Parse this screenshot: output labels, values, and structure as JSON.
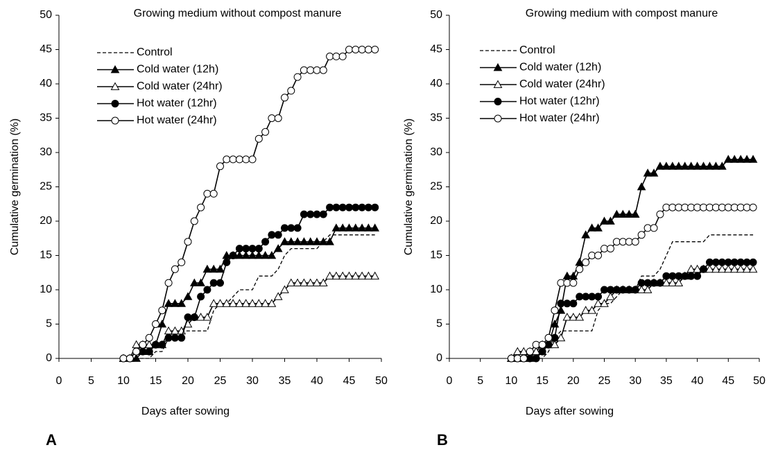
{
  "chart_data": [
    {
      "type": "line",
      "panel_label": "A",
      "title": "Growing medium without compost manure",
      "x_label": "Days after sowing",
      "y_label": "Cumulative germination (%)",
      "xlim": [
        0,
        50
      ],
      "ylim": [
        0,
        50
      ],
      "xticks": [
        0,
        5,
        10,
        15,
        20,
        25,
        30,
        35,
        40,
        45,
        50
      ],
      "yticks": [
        0,
        5,
        10,
        15,
        20,
        25,
        30,
        35,
        40,
        45,
        50
      ],
      "legend": "upper left",
      "x": [
        10,
        11,
        12,
        13,
        14,
        15,
        16,
        17,
        18,
        19,
        20,
        21,
        22,
        23,
        24,
        25,
        26,
        27,
        28,
        29,
        30,
        31,
        32,
        33,
        34,
        35,
        36,
        37,
        38,
        39,
        40,
        41,
        42,
        43,
        44,
        45,
        46,
        47,
        48,
        49
      ],
      "series": [
        {
          "name": "Control",
          "color": "#000000",
          "marker": "none",
          "dashed": true,
          "values": [
            0,
            0,
            0,
            0,
            0,
            1,
            1,
            3,
            4,
            4,
            4,
            4,
            4,
            4,
            7,
            8,
            8,
            9,
            10,
            10,
            10,
            12,
            12,
            12,
            13,
            15,
            16,
            16,
            16,
            16,
            16,
            17,
            18,
            18,
            18,
            18,
            18,
            18,
            18,
            18
          ]
        },
        {
          "name": "Cold water (12h)",
          "color": "#000000",
          "marker": "triangle-filled",
          "dashed": false,
          "values": [
            0,
            0,
            0,
            1,
            1,
            2,
            5,
            8,
            8,
            8,
            9,
            11,
            11,
            13,
            13,
            13,
            15,
            15,
            15,
            15,
            15,
            15,
            15,
            15,
            16,
            17,
            17,
            17,
            17,
            17,
            17,
            17,
            17,
            19,
            19,
            19,
            19,
            19,
            19,
            19
          ]
        },
        {
          "name": "Cold water (24hr)",
          "color": "#000000",
          "marker": "triangle-open",
          "dashed": false,
          "values": [
            0,
            0,
            2,
            2,
            2,
            2,
            2,
            4,
            4,
            4,
            5,
            6,
            6,
            6,
            8,
            8,
            8,
            8,
            8,
            8,
            8,
            8,
            8,
            8,
            9,
            10,
            11,
            11,
            11,
            11,
            11,
            11,
            12,
            12,
            12,
            12,
            12,
            12,
            12,
            12
          ]
        },
        {
          "name": "Hot water (12hr)",
          "color": "#000000",
          "marker": "circle-filled",
          "dashed": false,
          "values": [
            0,
            0,
            1,
            1,
            1,
            2,
            2,
            3,
            3,
            3,
            6,
            6,
            9,
            10,
            11,
            11,
            14,
            15,
            16,
            16,
            16,
            16,
            17,
            18,
            18,
            19,
            19,
            19,
            21,
            21,
            21,
            21,
            22,
            22,
            22,
            22,
            22,
            22,
            22,
            22
          ]
        },
        {
          "name": "Hot water (24hr)",
          "color": "#000000",
          "marker": "circle-open",
          "dashed": false,
          "values": [
            0,
            0,
            1,
            2,
            3,
            5,
            7,
            11,
            13,
            14,
            17,
            20,
            22,
            24,
            24,
            28,
            29,
            29,
            29,
            29,
            29,
            32,
            33,
            35,
            35,
            38,
            39,
            41,
            42,
            42,
            42,
            42,
            44,
            44,
            44,
            45,
            45,
            45,
            45,
            45
          ]
        }
      ]
    },
    {
      "type": "line",
      "panel_label": "B",
      "title": "Growing medium with compost manure",
      "x_label": "Days after sowing",
      "y_label": "Cumulative germination (%)",
      "xlim": [
        0,
        50
      ],
      "ylim": [
        0,
        50
      ],
      "xticks": [
        0,
        5,
        10,
        15,
        20,
        25,
        30,
        35,
        40,
        45,
        50
      ],
      "yticks": [
        0,
        5,
        10,
        15,
        20,
        25,
        30,
        35,
        40,
        45,
        50
      ],
      "legend": "upper left",
      "x": [
        10,
        11,
        12,
        13,
        14,
        15,
        16,
        17,
        18,
        19,
        20,
        21,
        22,
        23,
        24,
        25,
        26,
        27,
        28,
        29,
        30,
        31,
        32,
        33,
        34,
        35,
        36,
        37,
        38,
        39,
        40,
        41,
        42,
        43,
        44,
        45,
        46,
        47,
        48,
        49
      ],
      "series": [
        {
          "name": "Control",
          "color": "#000000",
          "marker": "none",
          "dashed": true,
          "values": [
            0,
            0,
            0,
            0,
            0,
            0,
            1,
            3,
            4,
            4,
            4,
            4,
            4,
            4,
            7,
            8,
            8,
            9,
            10,
            10,
            10,
            12,
            12,
            12,
            13,
            15,
            17,
            17,
            17,
            17,
            17,
            17,
            18,
            18,
            18,
            18,
            18,
            18,
            18,
            18
          ]
        },
        {
          "name": "Cold water (12h)",
          "color": "#000000",
          "marker": "triangle-filled",
          "dashed": false,
          "values": [
            0,
            0,
            0,
            0,
            1,
            2,
            2,
            5,
            7,
            12,
            12,
            14,
            18,
            19,
            19,
            20,
            20,
            21,
            21,
            21,
            21,
            25,
            27,
            27,
            28,
            28,
            28,
            28,
            28,
            28,
            28,
            28,
            28,
            28,
            28,
            29,
            29,
            29,
            29,
            29
          ]
        },
        {
          "name": "Cold water (24hr)",
          "color": "#000000",
          "marker": "triangle-open",
          "dashed": false,
          "values": [
            0,
            1,
            1,
            1,
            1,
            1,
            2,
            2,
            3,
            6,
            6,
            6,
            7,
            7,
            8,
            8,
            9,
            10,
            10,
            10,
            10,
            10,
            10,
            11,
            11,
            11,
            11,
            11,
            12,
            13,
            13,
            13,
            13,
            13,
            13,
            13,
            13,
            13,
            13,
            13
          ]
        },
        {
          "name": "Hot water (12hr)",
          "color": "#000000",
          "marker": "circle-filled",
          "dashed": false,
          "values": [
            0,
            0,
            0,
            0,
            0,
            1,
            2,
            3,
            8,
            8,
            8,
            9,
            9,
            9,
            9,
            10,
            10,
            10,
            10,
            10,
            10,
            11,
            11,
            11,
            11,
            12,
            12,
            12,
            12,
            12,
            12,
            13,
            14,
            14,
            14,
            14,
            14,
            14,
            14,
            14
          ]
        },
        {
          "name": "Hot water (24hr)",
          "color": "#000000",
          "marker": "circle-open",
          "dashed": false,
          "values": [
            0,
            0,
            0,
            1,
            2,
            2,
            3,
            7,
            11,
            11,
            11,
            13,
            14,
            15,
            15,
            16,
            16,
            17,
            17,
            17,
            17,
            18,
            19,
            19,
            21,
            22,
            22,
            22,
            22,
            22,
            22,
            22,
            22,
            22,
            22,
            22,
            22,
            22,
            22,
            22
          ]
        }
      ]
    }
  ]
}
